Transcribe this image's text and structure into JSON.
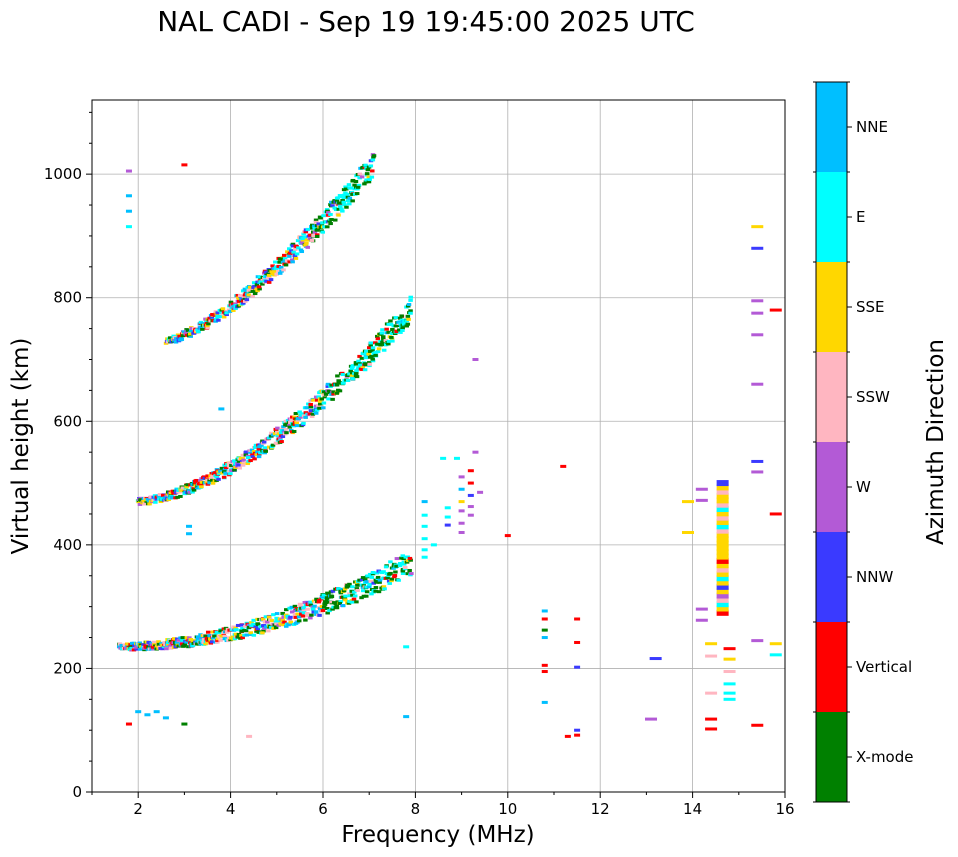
{
  "chart_data": {
    "type": "scatter",
    "title": "NAL CADI - Sep 19 19:45:00 2025 UTC",
    "xlabel": "Frequency (MHz)",
    "ylabel": "Virtual height (km)",
    "xlim": [
      1,
      16
    ],
    "ylim": [
      0,
      1120
    ],
    "xticks": [
      2,
      4,
      6,
      8,
      10,
      12,
      14,
      16
    ],
    "yticks": [
      0,
      200,
      400,
      600,
      800,
      1000
    ],
    "grid": true,
    "colorbar": {
      "label": "Azimuth Direction",
      "categories": [
        "X-mode",
        "Vertical",
        "NNW",
        "W",
        "SSW",
        "SSE",
        "E",
        "NNE"
      ],
      "colors": [
        "#008000",
        "#ff0000",
        "#3a3aff",
        "#b35ad6",
        "#ffb6c1",
        "#ffd700",
        "#00ffff",
        "#00bfff"
      ]
    },
    "traces": [
      {
        "name": "trace-1",
        "start": [
          1.6,
          235
        ],
        "end": [
          7.9,
          370
        ],
        "curve": 1.9
      },
      {
        "name": "trace-2",
        "start": [
          2.0,
          470
        ],
        "end": [
          7.9,
          780
        ],
        "curve": 1.6
      },
      {
        "name": "trace-3",
        "start": [
          2.6,
          730
        ],
        "end": [
          7.1,
          1015
        ],
        "curve": 1.4
      }
    ],
    "points": [
      {
        "f": 1.8,
        "h": 110,
        "c": 1
      },
      {
        "f": 2.0,
        "h": 130,
        "c": 7
      },
      {
        "f": 2.2,
        "h": 125,
        "c": 7
      },
      {
        "f": 2.4,
        "h": 130,
        "c": 7
      },
      {
        "f": 2.6,
        "h": 120,
        "c": 7
      },
      {
        "f": 3.0,
        "h": 110,
        "c": 0
      },
      {
        "f": 4.4,
        "h": 90,
        "c": 4
      },
      {
        "f": 1.8,
        "h": 1005,
        "c": 3
      },
      {
        "f": 1.8,
        "h": 965,
        "c": 7
      },
      {
        "f": 1.8,
        "h": 940,
        "c": 7
      },
      {
        "f": 1.8,
        "h": 915,
        "c": 6
      },
      {
        "f": 3.1,
        "h": 430,
        "c": 7
      },
      {
        "f": 3.1,
        "h": 418,
        "c": 7
      },
      {
        "f": 3.0,
        "h": 1015,
        "c": 1
      },
      {
        "f": 3.8,
        "h": 620,
        "c": 7
      },
      {
        "f": 9.3,
        "h": 700,
        "c": 3
      },
      {
        "f": 9.3,
        "h": 550,
        "c": 3
      },
      {
        "f": 11.2,
        "h": 527,
        "c": 1
      },
      {
        "f": 10.0,
        "h": 415,
        "c": 1
      },
      {
        "f": 10.8,
        "h": 293,
        "c": 7
      },
      {
        "f": 10.8,
        "h": 280,
        "c": 1
      },
      {
        "f": 10.8,
        "h": 262,
        "c": 0
      },
      {
        "f": 10.8,
        "h": 250,
        "c": 7
      },
      {
        "f": 10.8,
        "h": 205,
        "c": 1
      },
      {
        "f": 10.8,
        "h": 195,
        "c": 1
      },
      {
        "f": 10.8,
        "h": 145,
        "c": 7
      },
      {
        "f": 11.3,
        "h": 90,
        "c": 1
      },
      {
        "f": 11.5,
        "h": 280,
        "c": 1
      },
      {
        "f": 11.5,
        "h": 242,
        "c": 1
      },
      {
        "f": 11.5,
        "h": 202,
        "c": 2
      },
      {
        "f": 11.5,
        "h": 100,
        "c": 2
      },
      {
        "f": 11.5,
        "h": 92,
        "c": 1
      },
      {
        "f": 7.8,
        "h": 235,
        "c": 6
      },
      {
        "f": 7.8,
        "h": 122,
        "c": 7
      },
      {
        "f": 13.2,
        "h": 216,
        "c": 2
      },
      {
        "f": 13.1,
        "h": 118,
        "c": 3
      },
      {
        "f": 13.9,
        "h": 470,
        "c": 5
      },
      {
        "f": 13.9,
        "h": 420,
        "c": 5
      },
      {
        "f": 14.2,
        "h": 490,
        "c": 3
      },
      {
        "f": 14.2,
        "h": 472,
        "c": 3
      },
      {
        "f": 14.2,
        "h": 296,
        "c": 3
      },
      {
        "f": 14.2,
        "h": 278,
        "c": 3
      },
      {
        "f": 14.4,
        "h": 240,
        "c": 5
      },
      {
        "f": 14.4,
        "h": 220,
        "c": 4
      },
      {
        "f": 14.4,
        "h": 160,
        "c": 4
      },
      {
        "f": 14.4,
        "h": 118,
        "c": 1
      },
      {
        "f": 14.4,
        "h": 102,
        "c": 1
      },
      {
        "f": 15.4,
        "h": 915,
        "c": 5
      },
      {
        "f": 15.4,
        "h": 880,
        "c": 2
      },
      {
        "f": 15.4,
        "h": 795,
        "c": 3
      },
      {
        "f": 15.4,
        "h": 775,
        "c": 3
      },
      {
        "f": 15.4,
        "h": 740,
        "c": 3
      },
      {
        "f": 15.4,
        "h": 660,
        "c": 3
      },
      {
        "f": 15.4,
        "h": 535,
        "c": 2
      },
      {
        "f": 15.4,
        "h": 518,
        "c": 3
      },
      {
        "f": 15.4,
        "h": 245,
        "c": 3
      },
      {
        "f": 15.4,
        "h": 108,
        "c": 1
      },
      {
        "f": 15.8,
        "h": 780,
        "c": 1
      },
      {
        "f": 15.8,
        "h": 450,
        "c": 1
      },
      {
        "f": 15.8,
        "h": 240,
        "c": 5
      },
      {
        "f": 15.8,
        "h": 222,
        "c": 6
      },
      {
        "f": 14.8,
        "h": 232,
        "c": 1
      },
      {
        "f": 14.8,
        "h": 215,
        "c": 5
      },
      {
        "f": 14.8,
        "h": 195,
        "c": 4
      },
      {
        "f": 14.8,
        "h": 175,
        "c": 6
      },
      {
        "f": 14.8,
        "h": 160,
        "c": 6
      },
      {
        "f": 14.8,
        "h": 150,
        "c": 6
      },
      {
        "f": 8.2,
        "h": 470,
        "c": 7
      },
      {
        "f": 8.2,
        "h": 448,
        "c": 6
      },
      {
        "f": 8.2,
        "h": 430,
        "c": 6
      },
      {
        "f": 8.2,
        "h": 410,
        "c": 6
      },
      {
        "f": 8.2,
        "h": 392,
        "c": 6
      },
      {
        "f": 8.2,
        "h": 380,
        "c": 6
      },
      {
        "f": 8.4,
        "h": 400,
        "c": 6
      },
      {
        "f": 8.6,
        "h": 540,
        "c": 6
      },
      {
        "f": 8.7,
        "h": 460,
        "c": 6
      },
      {
        "f": 8.7,
        "h": 445,
        "c": 6
      },
      {
        "f": 8.7,
        "h": 432,
        "c": 2
      },
      {
        "f": 8.9,
        "h": 540,
        "c": 6
      },
      {
        "f": 9.0,
        "h": 510,
        "c": 3
      },
      {
        "f": 9.0,
        "h": 490,
        "c": 7
      },
      {
        "f": 9.0,
        "h": 470,
        "c": 5
      },
      {
        "f": 9.0,
        "h": 455,
        "c": 3
      },
      {
        "f": 9.0,
        "h": 435,
        "c": 3
      },
      {
        "f": 9.0,
        "h": 420,
        "c": 3
      },
      {
        "f": 9.2,
        "h": 520,
        "c": 1
      },
      {
        "f": 9.2,
        "h": 500,
        "c": 1
      },
      {
        "f": 9.2,
        "h": 480,
        "c": 2
      },
      {
        "f": 9.2,
        "h": 462,
        "c": 3
      },
      {
        "f": 9.2,
        "h": 448,
        "c": 3
      },
      {
        "f": 9.4,
        "h": 485,
        "c": 3
      }
    ],
    "column": {
      "f": 14.65,
      "h_start": 290,
      "h_end": 500,
      "pattern": [
        1,
        5,
        6,
        4,
        3,
        5,
        2,
        5,
        6,
        5,
        4,
        5,
        1,
        5,
        5,
        5,
        5,
        5,
        5,
        4,
        6,
        5,
        4,
        5,
        6,
        4,
        5,
        5,
        4,
        5,
        2
      ]
    }
  }
}
